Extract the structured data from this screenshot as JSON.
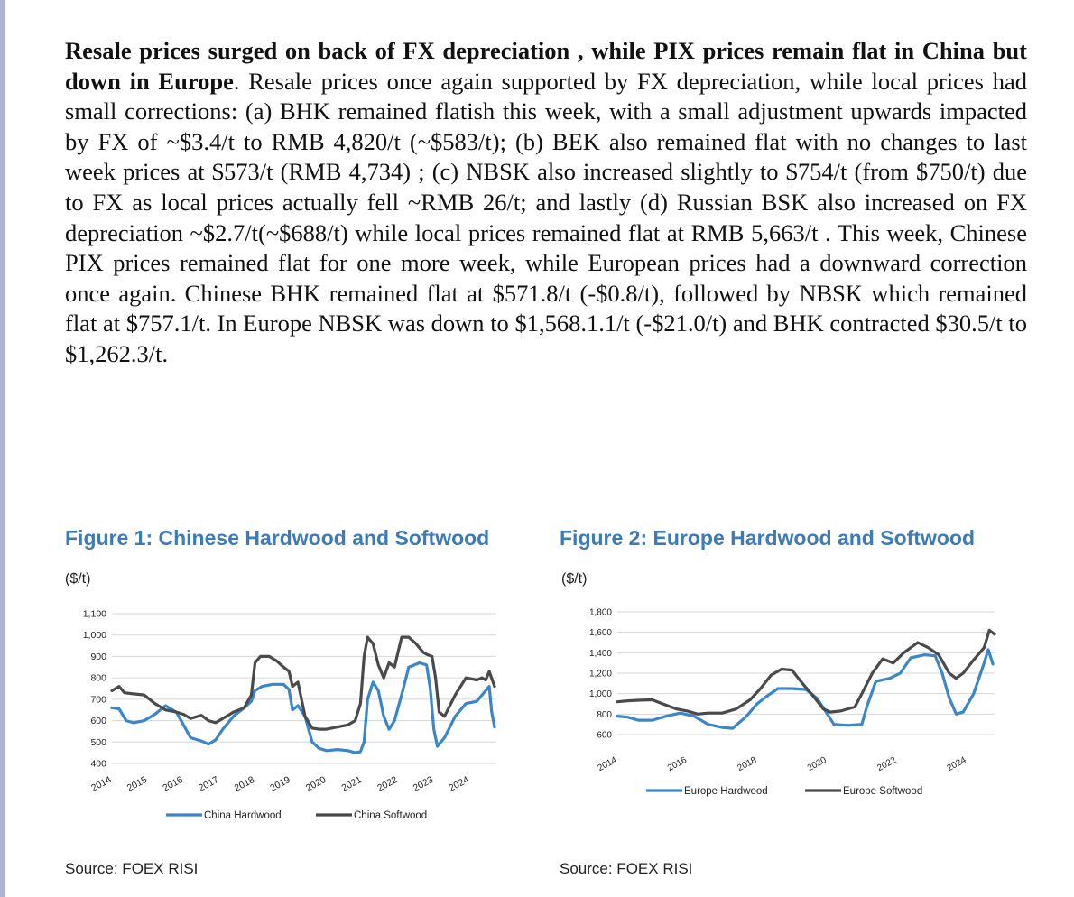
{
  "paragraph": {
    "bold": "Resale prices surged on back of FX depreciation , while PIX prices remain flat in China but down in Europe",
    "body": ". Resale prices once again supported by FX depreciation, while local prices had small corrections: (a) BHK remained flatish this week, with a small adjustment upwards impacted by FX of ~$3.4/t to RMB 4,820/t (~$583/t); (b) BEK also remained flat with no changes to last week prices at $573/t (RMB 4,734) ; (c) NBSK also increased slightly to $754/t (from $750/t) due to FX as local prices actually fell ~RMB 26/t; and lastly (d) Russian BSK also increased on FX depreciation ~$2.7/t(~$688/t) while local prices remained flat at RMB 5,663/t . This week, Chinese PIX prices remained flat for one more week, while European prices had a downward correction once again. Chinese BHK remained flat at $571.8/t (-$0.8/t), followed by NBSK which remained flat at $757.1/t. In Europe NBSK was down to $1,568.1.1/t (-$21.0/t) and BHK contracted $30.5/t to $1,262.3/t."
  },
  "figures": [
    {
      "title": "Figure 1: Chinese Hardwood and Softwood",
      "unit": "($/t)",
      "source": "Source: FOEX RISI"
    },
    {
      "title": "Figure 2: Europe Hardwood and Softwood",
      "unit": "($/t)",
      "source": "Source: FOEX RISI"
    }
  ],
  "chart_data": [
    {
      "type": "line",
      "title": "Figure 1: Chinese Hardwood and Softwood",
      "ylabel": "($/t)",
      "ylim": [
        400,
        1100
      ],
      "yticks": [
        400,
        500,
        600,
        700,
        800,
        900,
        1000,
        1100
      ],
      "ytick_labels": [
        "400",
        "500",
        "600",
        "700",
        "800",
        "900",
        "1,000",
        "1,100"
      ],
      "xlim": [
        2014,
        2024.75
      ],
      "xticks": [
        2014,
        2015,
        2016,
        2017,
        2018,
        2019,
        2020,
        2021,
        2022,
        2023,
        2024
      ],
      "xtick_labels": [
        "2014",
        "2015",
        "2016",
        "2017",
        "2018",
        "2019",
        "2020",
        "2021",
        "2022",
        "2023",
        "2024"
      ],
      "grid": true,
      "legend": "bottom",
      "series": [
        {
          "name": "China Hardwood",
          "color": "#3b86c8",
          "x": [
            2014,
            2014.2,
            2014.4,
            2014.6,
            2014.9,
            2015.2,
            2015.5,
            2015.8,
            2016.0,
            2016.2,
            2016.5,
            2016.7,
            2016.9,
            2017.1,
            2017.4,
            2017.7,
            2017.9,
            2018.0,
            2018.2,
            2018.5,
            2018.8,
            2018.95,
            2019.05,
            2019.2,
            2019.4,
            2019.6,
            2019.8,
            2020.0,
            2020.3,
            2020.6,
            2020.8,
            2020.95,
            2021.05,
            2021.15,
            2021.3,
            2021.45,
            2021.6,
            2021.75,
            2021.9,
            2022.1,
            2022.3,
            2022.6,
            2022.8,
            2022.9,
            2023.0,
            2023.1,
            2023.3,
            2023.6,
            2023.9,
            2024.2,
            2024.45,
            2024.55,
            2024.62,
            2024.7
          ],
          "values": [
            660,
            655,
            600,
            590,
            600,
            630,
            670,
            640,
            580,
            520,
            505,
            490,
            510,
            560,
            620,
            660,
            690,
            740,
            760,
            770,
            770,
            745,
            650,
            670,
            620,
            500,
            470,
            460,
            465,
            460,
            450,
            455,
            500,
            700,
            780,
            740,
            620,
            560,
            600,
            720,
            850,
            870,
            860,
            750,
            560,
            480,
            520,
            620,
            680,
            690,
            740,
            760,
            640,
            570
          ]
        },
        {
          "name": "China Softwood",
          "color": "#4a4a4a",
          "x": [
            2014,
            2014.2,
            2014.35,
            2014.6,
            2014.9,
            2015.2,
            2015.5,
            2015.8,
            2016.0,
            2016.2,
            2016.5,
            2016.7,
            2016.9,
            2017.1,
            2017.4,
            2017.7,
            2017.9,
            2018.0,
            2018.15,
            2018.4,
            2018.6,
            2018.8,
            2018.95,
            2019.05,
            2019.2,
            2019.4,
            2019.6,
            2019.8,
            2020.0,
            2020.3,
            2020.6,
            2020.8,
            2020.95,
            2021.05,
            2021.15,
            2021.3,
            2021.45,
            2021.6,
            2021.75,
            2021.9,
            2022.1,
            2022.3,
            2022.5,
            2022.7,
            2022.8,
            2022.95,
            2023.05,
            2023.15,
            2023.3,
            2023.6,
            2023.9,
            2024.2,
            2024.35,
            2024.45,
            2024.55,
            2024.7
          ],
          "values": [
            740,
            760,
            730,
            725,
            720,
            680,
            650,
            640,
            630,
            610,
            625,
            600,
            590,
            610,
            640,
            660,
            720,
            870,
            900,
            900,
            880,
            850,
            830,
            760,
            780,
            620,
            565,
            560,
            560,
            570,
            580,
            600,
            680,
            900,
            990,
            960,
            860,
            800,
            870,
            850,
            990,
            990,
            960,
            920,
            910,
            900,
            800,
            640,
            620,
            720,
            800,
            790,
            800,
            790,
            830,
            760
          ]
        }
      ]
    },
    {
      "type": "line",
      "title": "Figure 2: Europe Hardwood and Softwood",
      "ylabel": "($/t)",
      "ylim": [
        600,
        1800
      ],
      "yticks": [
        600,
        800,
        1000,
        1200,
        1400,
        1600,
        1800
      ],
      "ytick_labels": [
        "600",
        "800",
        "1,000",
        "1,200",
        "1,400",
        "1,600",
        "1,800"
      ],
      "xlim": [
        2014,
        2024.8
      ],
      "xticks": [
        2014,
        2016,
        2018,
        2020,
        2022,
        2024
      ],
      "xtick_labels": [
        "2014",
        "2016",
        "2018",
        "2020",
        "2022",
        "2024"
      ],
      "grid": true,
      "legend": "bottom",
      "series": [
        {
          "name": "Europe Hardwood",
          "color": "#3b86c8",
          "x": [
            2014,
            2014.3,
            2014.6,
            2015.0,
            2015.4,
            2015.8,
            2016.2,
            2016.6,
            2017.0,
            2017.3,
            2017.7,
            2018.0,
            2018.3,
            2018.6,
            2019.0,
            2019.4,
            2019.7,
            2019.9,
            2020.2,
            2020.6,
            2021.0,
            2021.15,
            2021.4,
            2021.8,
            2022.1,
            2022.4,
            2022.8,
            2023.1,
            2023.3,
            2023.5,
            2023.7,
            2023.9,
            2024.2,
            2024.5,
            2024.62,
            2024.75
          ],
          "values": [
            780,
            770,
            740,
            740,
            780,
            810,
            780,
            700,
            670,
            660,
            780,
            900,
            980,
            1050,
            1050,
            1040,
            960,
            860,
            700,
            690,
            700,
            880,
            1120,
            1150,
            1200,
            1350,
            1380,
            1370,
            1200,
            960,
            800,
            820,
            1000,
            1300,
            1430,
            1290
          ]
        },
        {
          "name": "Europe Softwood",
          "color": "#4a4a4a",
          "x": [
            2014,
            2014.3,
            2014.6,
            2015.0,
            2015.3,
            2015.7,
            2016.0,
            2016.3,
            2016.6,
            2017.0,
            2017.4,
            2017.8,
            2018.1,
            2018.4,
            2018.7,
            2019.0,
            2019.3,
            2019.6,
            2019.9,
            2020.1,
            2020.4,
            2020.8,
            2021.0,
            2021.3,
            2021.6,
            2021.9,
            2022.2,
            2022.6,
            2022.9,
            2023.2,
            2023.5,
            2023.7,
            2023.9,
            2024.2,
            2024.5,
            2024.65,
            2024.8
          ],
          "values": [
            920,
            930,
            935,
            940,
            900,
            850,
            830,
            800,
            810,
            810,
            850,
            940,
            1050,
            1180,
            1240,
            1230,
            1100,
            980,
            850,
            820,
            830,
            870,
            1000,
            1200,
            1340,
            1300,
            1400,
            1500,
            1450,
            1380,
            1200,
            1150,
            1200,
            1330,
            1450,
            1620,
            1580
          ]
        }
      ]
    }
  ]
}
